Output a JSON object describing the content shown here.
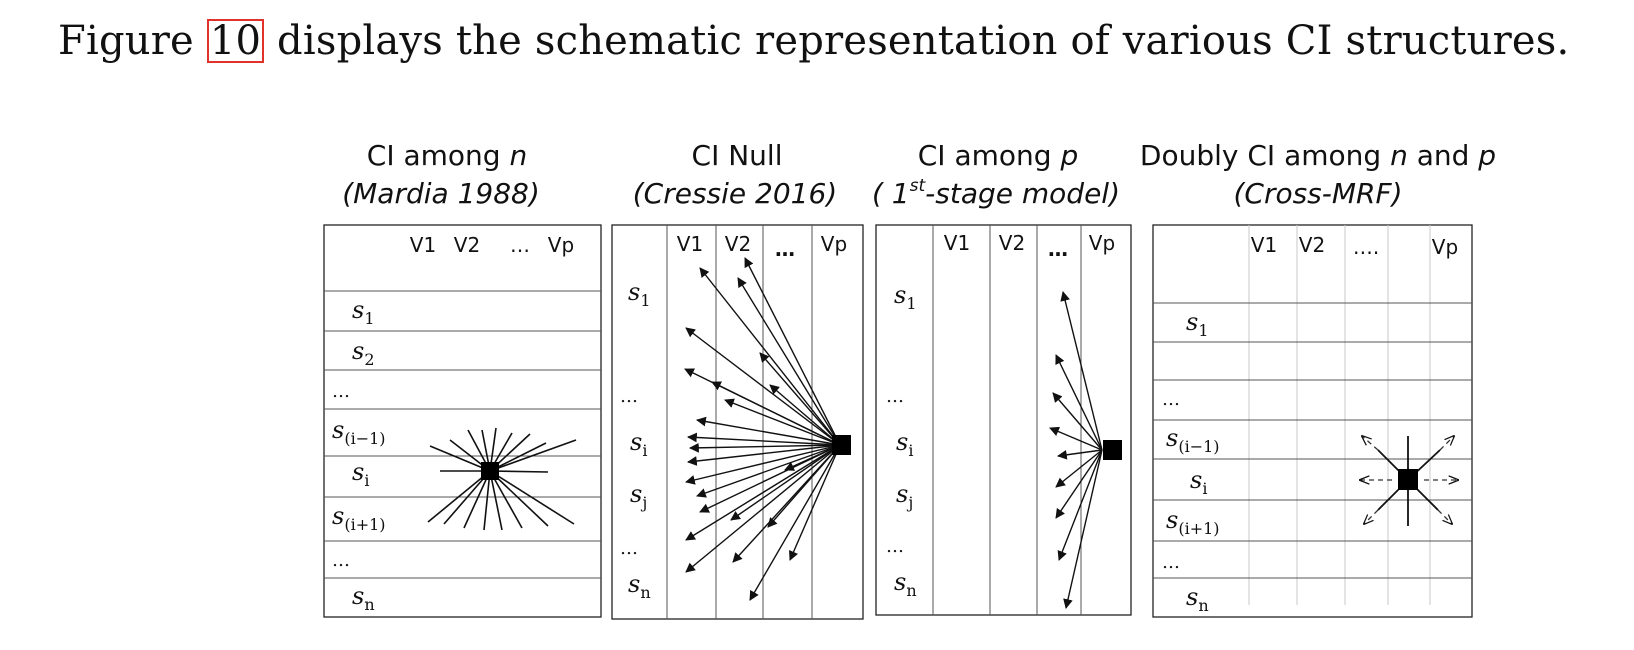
{
  "sentence": {
    "before": "Figure ",
    "ref": "10",
    "after": " displays the schematic representation of various CI structures."
  },
  "colors": {
    "ref_box": "#e0322a",
    "ink": "#111111",
    "light_grid": "#c8c8c8"
  },
  "panels": [
    {
      "title": {
        "pre": "CI among ",
        "em": "n",
        "post": ""
      },
      "subtitle": "(Mardia 1988)",
      "cols": [
        "V1",
        "V2",
        "…",
        "Vp"
      ],
      "rows": [
        {
          "base": "s",
          "sub": "1"
        },
        {
          "base": "s",
          "sub": "2"
        },
        {
          "text": "…"
        },
        {
          "base": "s",
          "sub": "(i−1)"
        },
        {
          "base": "s",
          "sub": "i"
        },
        {
          "base": "s",
          "sub": "(i+1)"
        },
        {
          "text": "…"
        },
        {
          "base": "s",
          "sub": "n"
        }
      ]
    },
    {
      "title": {
        "pre": "CI Null",
        "em": "",
        "post": ""
      },
      "subtitle": "(Cressie 2016)",
      "cols": [
        "V1",
        "V2",
        "…",
        "Vp"
      ],
      "rows": [
        {
          "base": "s",
          "sub": "1"
        },
        {
          "text": "…"
        },
        {
          "base": "s",
          "sub": "i"
        },
        {
          "base": "s",
          "sub": "j"
        },
        {
          "text": "…"
        },
        {
          "base": "s",
          "sub": "n"
        }
      ]
    },
    {
      "title": {
        "pre": "CI among ",
        "em": "p",
        "post": ""
      },
      "subtitle": {
        "open": "( 1",
        "sup": "st",
        "rest": "-stage model)"
      },
      "cols": [
        "V1",
        "V2",
        "…",
        "Vp"
      ],
      "rows": [
        {
          "base": "s",
          "sub": "1"
        },
        {
          "text": "…"
        },
        {
          "base": "s",
          "sub": "i"
        },
        {
          "base": "s",
          "sub": "j"
        },
        {
          "text": "…"
        },
        {
          "base": "s",
          "sub": "n"
        }
      ]
    },
    {
      "title": {
        "pre": "Doubly CI among ",
        "em": "n",
        "mid": " and ",
        "em2": "p"
      },
      "subtitle": "(Cross-MRF)",
      "cols": [
        "V1",
        "V2",
        "….",
        "Vp"
      ],
      "rows": [
        {
          "base": "s",
          "sub": "1"
        },
        {
          "text": "…"
        },
        {
          "base": "s",
          "sub": "(i−1)"
        },
        {
          "base": "s",
          "sub": "i"
        },
        {
          "base": "s",
          "sub": "(i+1)"
        },
        {
          "text": "…"
        },
        {
          "base": "s",
          "sub": "n"
        }
      ]
    }
  ]
}
